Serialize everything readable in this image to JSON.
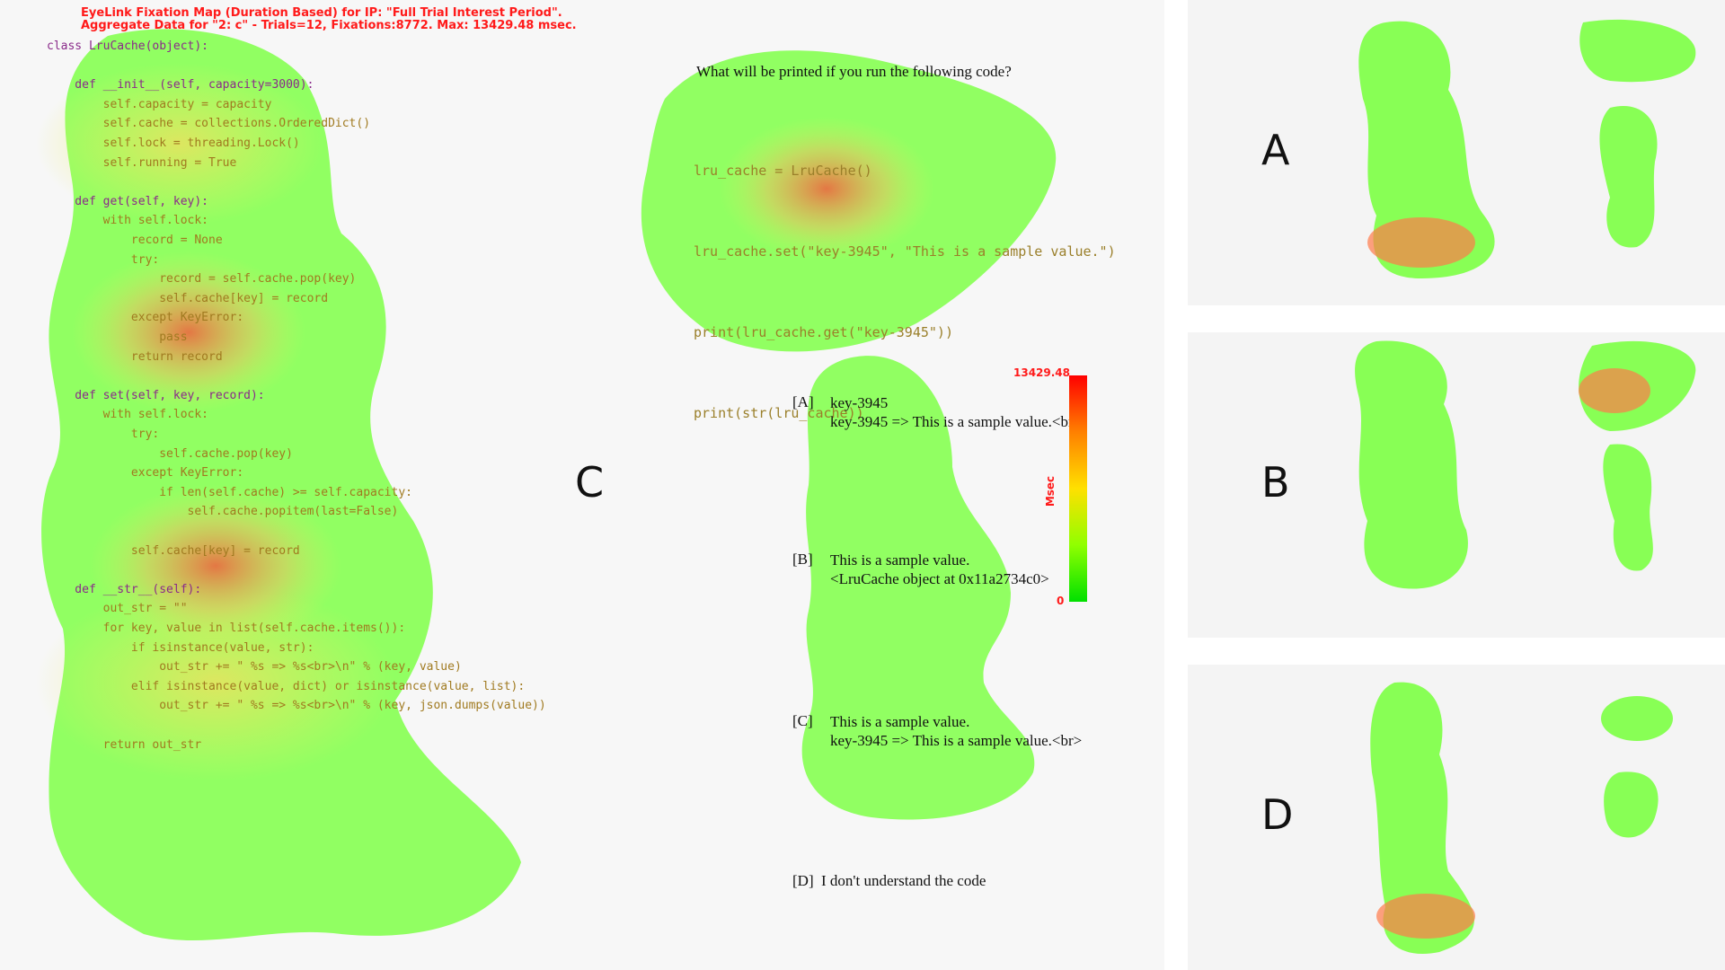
{
  "main": {
    "panel_letter": "C",
    "header_line1": "EyeLink Fixation Map (Duration Based) for IP: \"Full Trial Interest Period\".",
    "header_line2": "Aggregate Data for  \"2: c\" - Trials=12, Fixations:8772. Max: 13429.48 msec.",
    "code_lines": [
      "class LruCache(object):",
      "",
      "    def __init__(self, capacity=3000):",
      "        self.capacity = capacity",
      "        self.cache = collections.OrderedDict()",
      "        self.lock = threading.Lock()",
      "        self.running = True",
      "",
      "    def get(self, key):",
      "        with self.lock:",
      "            record = None",
      "            try:",
      "                record = self.cache.pop(key)",
      "                self.cache[key] = record",
      "            except KeyError:",
      "                pass",
      "            return record",
      "",
      "    def set(self, key, record):",
      "        with self.lock:",
      "            try:",
      "                self.cache.pop(key)",
      "            except KeyError:",
      "                if len(self.cache) >= self.capacity:",
      "                    self.cache.popitem(last=False)",
      "",
      "            self.cache[key] = record",
      "",
      "    def __str__(self):",
      "        out_str = \"\"",
      "        for key, value in list(self.cache.items()):",
      "            if isinstance(value, str):",
      "                out_str += \" %s => %s<br>\\n\" % (key, value)",
      "            elif isinstance(value, dict) or isinstance(value, list):",
      "                out_str += \" %s => %s<br>\\n\" % (key, json.dumps(value))",
      "",
      "        return out_str"
    ],
    "question": "What will be printed if you run the following code?",
    "question_code": [
      "lru_cache = LruCache()",
      "lru_cache.set(\"key-3945\", \"This is a sample value.\")",
      "print(lru_cache.get(\"key-3945\"))",
      "print(str(lru_cache))"
    ],
    "options": [
      {
        "tag": "[A]",
        "line1": "key-3945",
        "line2": " key-3945 => This is a sample value.<br>"
      },
      {
        "tag": "[B]",
        "line1": "This is a sample value.",
        "line2": "<LruCache object at 0x11a2734c0>"
      },
      {
        "tag": "[C]",
        "line1": "This is a sample value.",
        "line2": " key-3945 => This is a sample value.<br>"
      },
      {
        "tag": "[D]",
        "line1": "I don't understand the code",
        "line2": ""
      }
    ],
    "scale": {
      "max_label": "13429.48",
      "min_label": "0",
      "unit": "Msec",
      "colors": [
        "#ff0000",
        "#ff8000",
        "#ffe000",
        "#90ff00",
        "#00e000"
      ]
    }
  },
  "thumbnails": [
    {
      "letter": "A"
    },
    {
      "letter": "B"
    },
    {
      "letter": "D"
    }
  ],
  "colors": {
    "heat_low": "#7dff4a",
    "heat_mid": "#e8f060",
    "heat_high": "#ff5a3c",
    "header_red": "#ff1a1a"
  }
}
